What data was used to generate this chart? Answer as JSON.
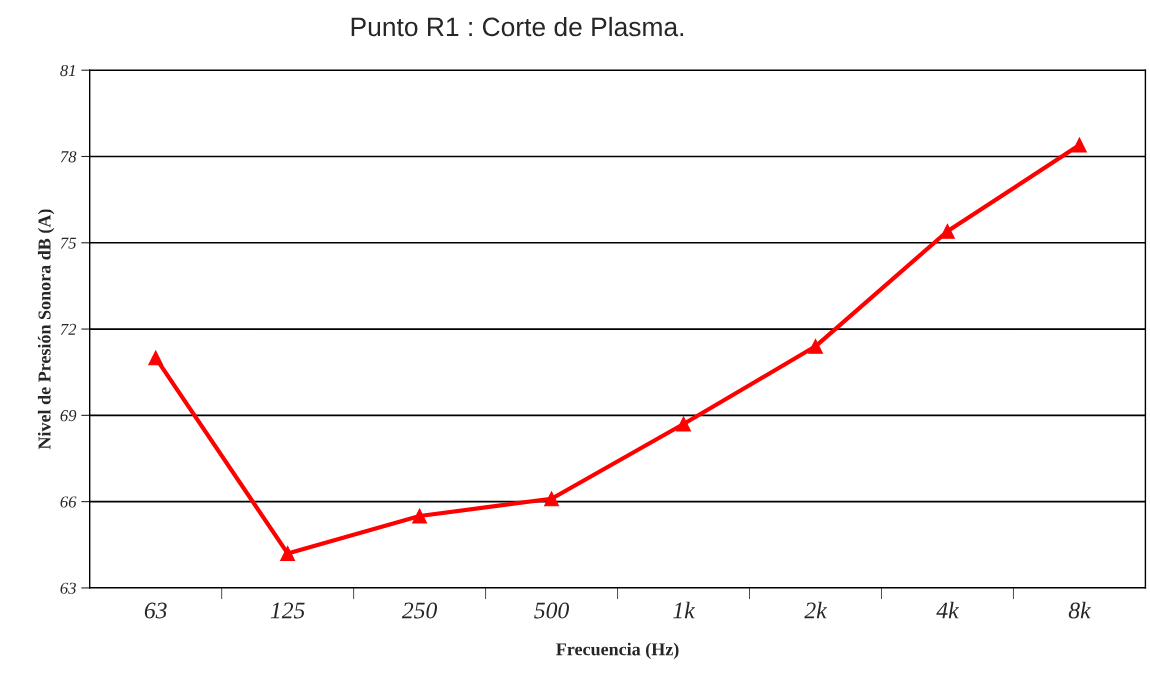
{
  "chart_data": {
    "type": "line",
    "title": "Punto R1 : Corte de Plasma.",
    "xlabel": "Frecuencia (Hz)",
    "ylabel": "Nivel de Presión Sonora dB (A)",
    "categories": [
      "63",
      "125",
      "250",
      "500",
      "1k",
      "2k",
      "4k",
      "8k"
    ],
    "series": [
      {
        "color": "#ff0000",
        "values": [
          71.0,
          64.2,
          65.5,
          66.1,
          68.7,
          71.4,
          75.4,
          78.4
        ]
      }
    ],
    "ylim": [
      63,
      81
    ],
    "yticks": [
      63,
      66,
      69,
      72,
      75,
      78,
      81
    ],
    "grid": "y",
    "marker": "triangle",
    "line_style": "solid"
  }
}
